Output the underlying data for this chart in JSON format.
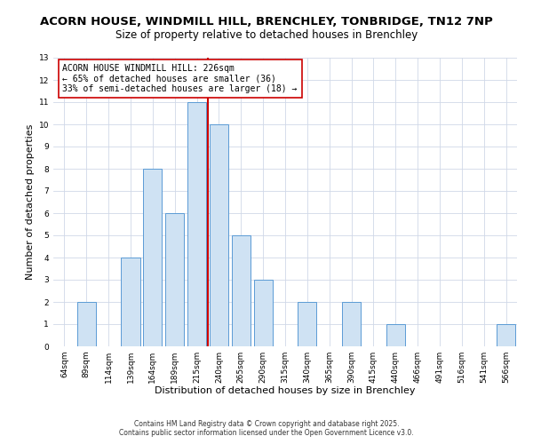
{
  "title1": "ACORN HOUSE, WINDMILL HILL, BRENCHLEY, TONBRIDGE, TN12 7NP",
  "title2": "Size of property relative to detached houses in Brenchley",
  "xlabel": "Distribution of detached houses by size in Brenchley",
  "ylabel": "Number of detached properties",
  "bar_labels": [
    "64sqm",
    "89sqm",
    "114sqm",
    "139sqm",
    "164sqm",
    "189sqm",
    "215sqm",
    "240sqm",
    "265sqm",
    "290sqm",
    "315sqm",
    "340sqm",
    "365sqm",
    "390sqm",
    "415sqm",
    "440sqm",
    "466sqm",
    "491sqm",
    "516sqm",
    "541sqm",
    "566sqm"
  ],
  "bar_values": [
    0,
    2,
    0,
    4,
    8,
    6,
    11,
    10,
    5,
    3,
    0,
    2,
    0,
    2,
    0,
    1,
    0,
    0,
    0,
    0,
    1
  ],
  "bar_color": "#cfe2f3",
  "bar_edge_color": "#5b9bd5",
  "vline_color": "#cc0000",
  "annotation_text": "ACORN HOUSE WINDMILL HILL: 226sqm\n← 65% of detached houses are smaller (36)\n33% of semi-detached houses are larger (18) →",
  "annotation_box_color": "#ffffff",
  "annotation_box_edge": "#cc0000",
  "ylim": [
    0,
    13
  ],
  "yticks": [
    0,
    1,
    2,
    3,
    4,
    5,
    6,
    7,
    8,
    9,
    10,
    11,
    12,
    13
  ],
  "grid_color": "#d0d8e8",
  "bg_color": "#ffffff",
  "footer1": "Contains HM Land Registry data © Crown copyright and database right 2025.",
  "footer2": "Contains public sector information licensed under the Open Government Licence v3.0.",
  "title1_fontsize": 9.5,
  "title2_fontsize": 8.5,
  "tick_fontsize": 6.5,
  "label_fontsize": 8,
  "annotation_fontsize": 7,
  "footer_fontsize": 5.5
}
